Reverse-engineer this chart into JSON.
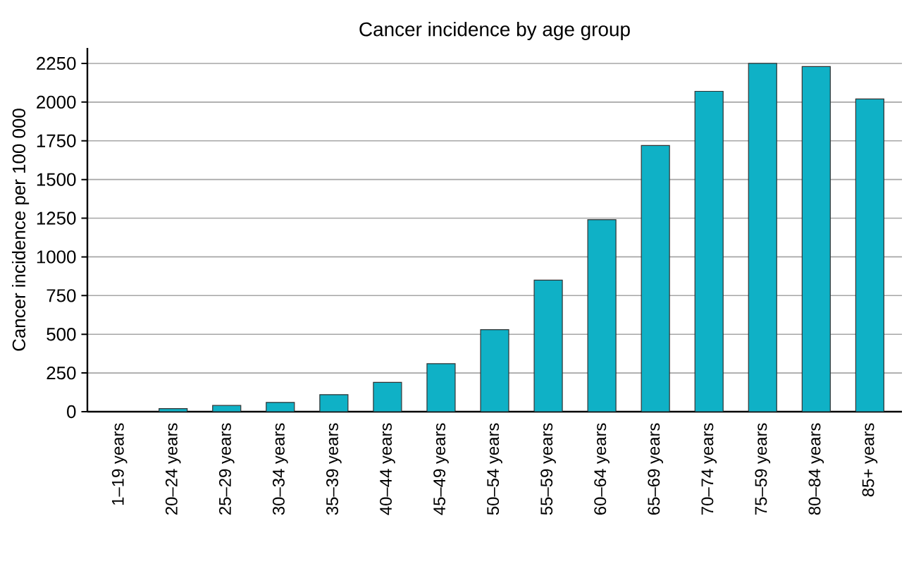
{
  "chart_data": {
    "type": "bar",
    "title": "Cancer incidence by age group",
    "ylabel": "Cancer incidence per 100 000",
    "categories": [
      "1–19 years",
      "20–24 years",
      "25–29 years",
      "30–34 years",
      "35–39 years",
      "40–44 years",
      "45–49 years",
      "50–54 years",
      "55–59 years",
      "60–64 years",
      "65–69 years",
      "70–74 years",
      "75–59 years",
      "80–84 years",
      "85+ years"
    ],
    "values": [
      null,
      20,
      40,
      60,
      110,
      190,
      310,
      530,
      850,
      1240,
      1720,
      2070,
      2250,
      2230,
      2020
    ],
    "color": "#0fb1c6",
    "ylim": [
      0,
      2350
    ],
    "yticks": [
      0,
      250,
      500,
      750,
      1000,
      1250,
      1500,
      1750,
      2000,
      2250
    ],
    "grid": "y"
  }
}
